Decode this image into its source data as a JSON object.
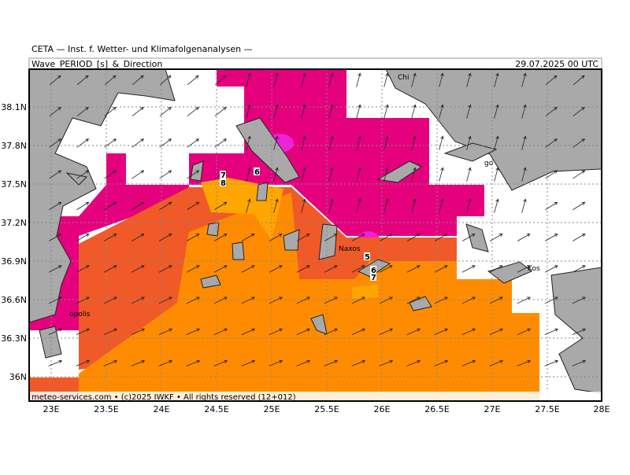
{
  "header": {
    "institute": "CETA — Inst. f. Wetter- und Klimafolgenanalysen —",
    "product": "Wave_PERIOD_[s]_&_Direction",
    "valid": "29.07.2025 00 UTC"
  },
  "map": {
    "lat_labels": [
      "38.1N",
      "37.8N",
      "37.5N",
      "37.2N",
      "36.9N",
      "36.6N",
      "36.3N",
      "36N"
    ],
    "lon_labels": [
      "23E",
      "23.5E",
      "24E",
      "24.5E",
      "25E",
      "25.5E",
      "26E",
      "26.5E",
      "27E",
      "27.5E",
      "28E"
    ],
    "places": [
      "Chi",
      "Naxos",
      "Kos",
      "opolis",
      "go"
    ],
    "contour_labels": [
      "7",
      "8",
      "6",
      "5",
      "6",
      "7"
    ]
  },
  "footer": "meteo-services.com • (c)2025 IWKF • All rights reserved (12+012)"
}
